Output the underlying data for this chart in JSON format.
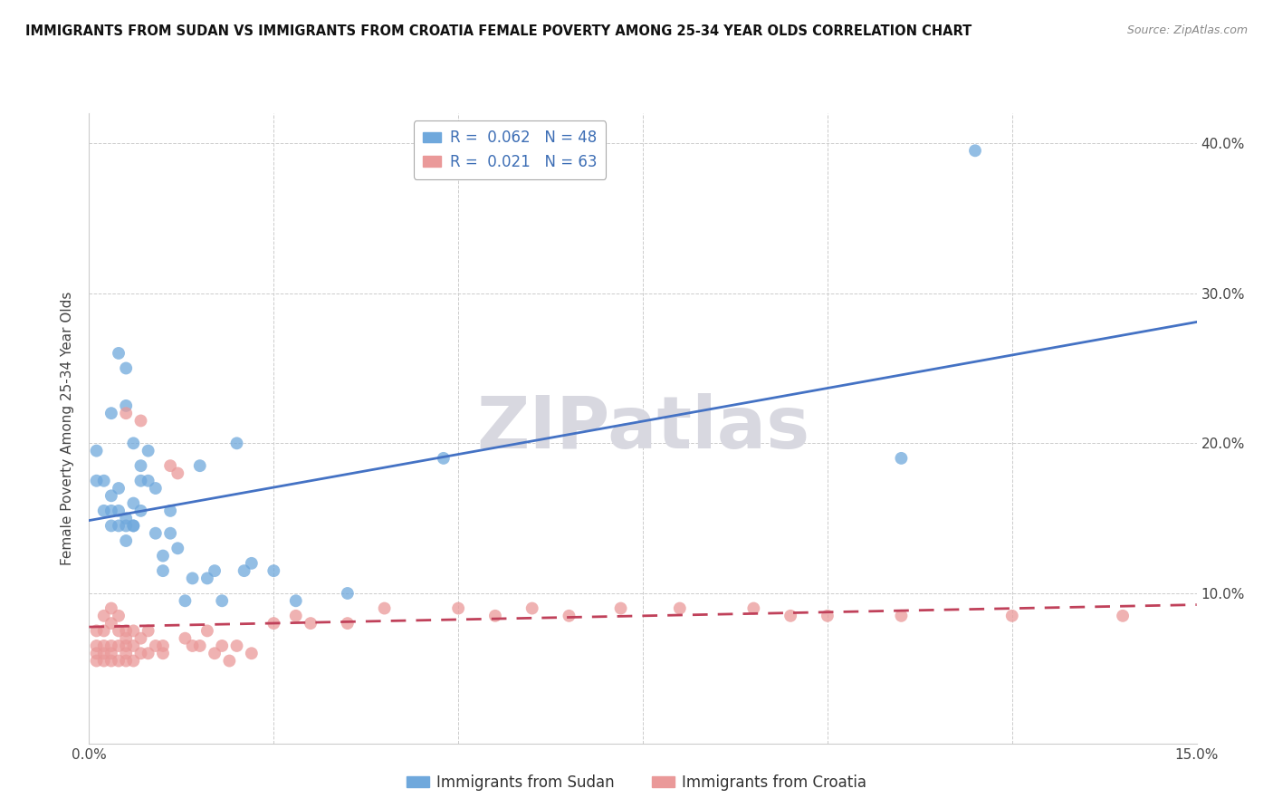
{
  "title": "IMMIGRANTS FROM SUDAN VS IMMIGRANTS FROM CROATIA FEMALE POVERTY AMONG 25-34 YEAR OLDS CORRELATION CHART",
  "source": "Source: ZipAtlas.com",
  "ylabel": "Female Poverty Among 25-34 Year Olds",
  "xlim": [
    0,
    0.15
  ],
  "ylim": [
    0,
    0.42
  ],
  "sudan_R": 0.062,
  "sudan_N": 48,
  "croatia_R": 0.021,
  "croatia_N": 63,
  "sudan_color": "#6fa8dc",
  "croatia_color": "#ea9999",
  "sudan_line_color": "#4472c4",
  "croatia_line_color": "#c0415a",
  "watermark": "ZIPatlas",
  "watermark_color": "#d8d8e0",
  "sudan_x": [
    0.001,
    0.001,
    0.002,
    0.002,
    0.003,
    0.003,
    0.003,
    0.003,
    0.004,
    0.004,
    0.004,
    0.004,
    0.005,
    0.005,
    0.005,
    0.005,
    0.005,
    0.006,
    0.006,
    0.006,
    0.006,
    0.007,
    0.007,
    0.007,
    0.008,
    0.008,
    0.009,
    0.009,
    0.01,
    0.01,
    0.011,
    0.011,
    0.012,
    0.013,
    0.014,
    0.015,
    0.016,
    0.017,
    0.018,
    0.02,
    0.021,
    0.022,
    0.025,
    0.028,
    0.035,
    0.048,
    0.11,
    0.12
  ],
  "sudan_y": [
    0.175,
    0.195,
    0.155,
    0.175,
    0.145,
    0.155,
    0.165,
    0.22,
    0.145,
    0.155,
    0.17,
    0.26,
    0.135,
    0.145,
    0.15,
    0.225,
    0.25,
    0.145,
    0.145,
    0.16,
    0.2,
    0.155,
    0.175,
    0.185,
    0.175,
    0.195,
    0.14,
    0.17,
    0.115,
    0.125,
    0.14,
    0.155,
    0.13,
    0.095,
    0.11,
    0.185,
    0.11,
    0.115,
    0.095,
    0.2,
    0.115,
    0.12,
    0.115,
    0.095,
    0.1,
    0.19,
    0.19,
    0.395
  ],
  "croatia_x": [
    0.001,
    0.001,
    0.001,
    0.001,
    0.002,
    0.002,
    0.002,
    0.002,
    0.002,
    0.003,
    0.003,
    0.003,
    0.003,
    0.003,
    0.004,
    0.004,
    0.004,
    0.004,
    0.005,
    0.005,
    0.005,
    0.005,
    0.005,
    0.005,
    0.006,
    0.006,
    0.006,
    0.007,
    0.007,
    0.007,
    0.008,
    0.008,
    0.009,
    0.01,
    0.01,
    0.011,
    0.012,
    0.013,
    0.014,
    0.015,
    0.016,
    0.017,
    0.018,
    0.019,
    0.02,
    0.022,
    0.025,
    0.028,
    0.03,
    0.035,
    0.04,
    0.05,
    0.055,
    0.06,
    0.065,
    0.072,
    0.08,
    0.09,
    0.095,
    0.1,
    0.11,
    0.125,
    0.14
  ],
  "croatia_y": [
    0.055,
    0.06,
    0.065,
    0.075,
    0.055,
    0.06,
    0.065,
    0.075,
    0.085,
    0.055,
    0.06,
    0.065,
    0.08,
    0.09,
    0.055,
    0.065,
    0.075,
    0.085,
    0.055,
    0.06,
    0.065,
    0.07,
    0.075,
    0.22,
    0.055,
    0.065,
    0.075,
    0.06,
    0.07,
    0.215,
    0.06,
    0.075,
    0.065,
    0.06,
    0.065,
    0.185,
    0.18,
    0.07,
    0.065,
    0.065,
    0.075,
    0.06,
    0.065,
    0.055,
    0.065,
    0.06,
    0.08,
    0.085,
    0.08,
    0.08,
    0.09,
    0.09,
    0.085,
    0.09,
    0.085,
    0.09,
    0.09,
    0.09,
    0.085,
    0.085,
    0.085,
    0.085,
    0.085
  ]
}
